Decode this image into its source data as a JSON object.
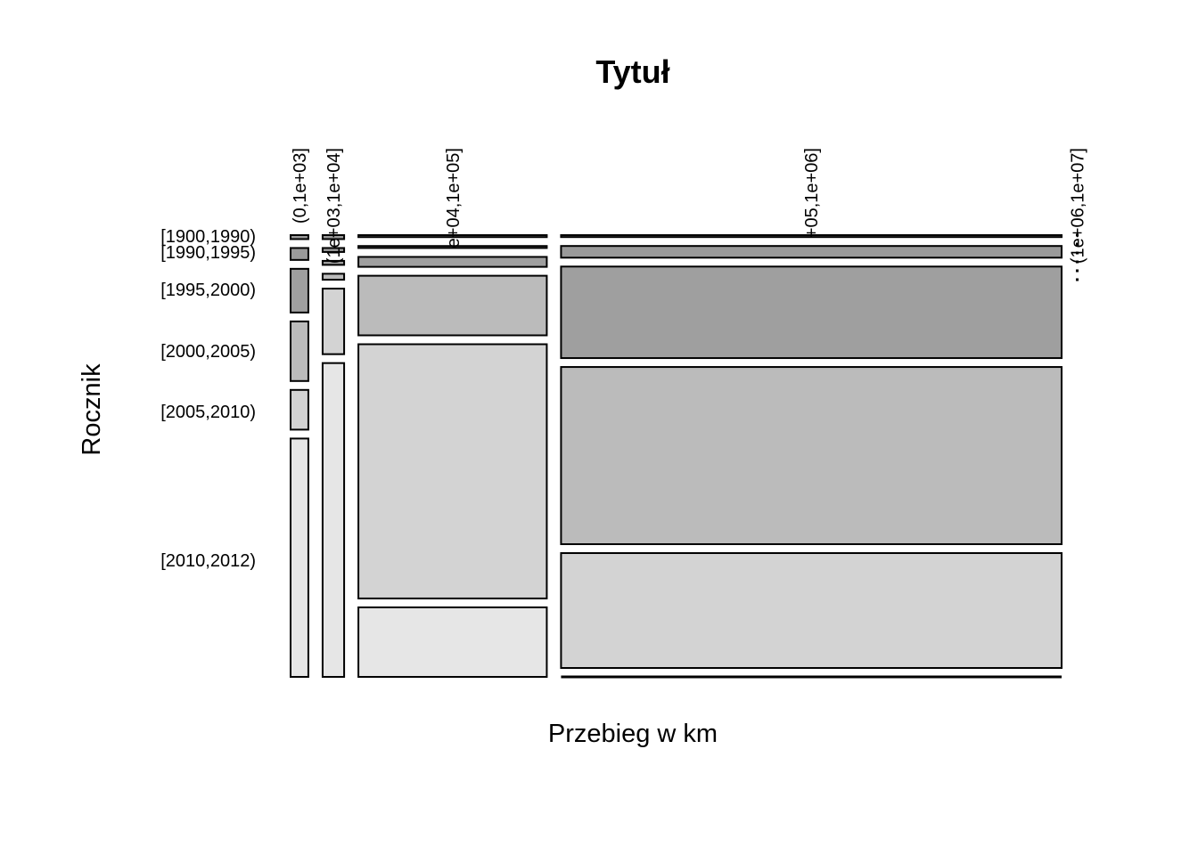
{
  "chart_data": {
    "type": "mosaic",
    "title": "Tytuł",
    "xlabel": "Przebieg w km",
    "ylabel": "Rocznik",
    "x_categories": [
      "(0,1e+03]",
      "(1e+03,1e+04]",
      "(1e+04,1e+05]",
      "(1e+05,1e+06]",
      "(1e+06,1e+07]"
    ],
    "x_category_labels_as_printed": [
      "(0,1e+03]",
      "(1e+03,1e+04]",
      "e+04,1e+05]",
      "+05,1e+06]",
      "(1e+06,1e+07]"
    ],
    "y_categories": [
      "[1900,1990)",
      "[1990,1995)",
      "[1995,2000)",
      "[2000,2005)",
      "[2005,2010)",
      "[2010,2012)"
    ],
    "column_proportions": [
      0.033,
      0.04,
      0.35,
      0.93,
      0.005
    ],
    "conditional_row_proportions": [
      [
        0.01,
        0.03,
        0.11,
        0.15,
        0.1,
        0.6
      ],
      [
        0.01,
        0.01,
        0.01,
        0.015,
        0.165,
        0.79
      ],
      [
        0.005,
        0.005,
        0.025,
        0.15,
        0.64,
        0.175
      ],
      [
        0.005,
        0.03,
        0.235,
        0.455,
        0.295,
        0.0
      ],
      [
        0.0,
        0.0,
        0.0,
        0.0,
        0.0,
        0.0
      ]
    ],
    "fill_shades": [
      "#9a9a9a",
      "#9a9a9a",
      "#9f9f9f",
      "#bbbbbb",
      "#d3d3d3",
      "#e6e6e6"
    ]
  }
}
